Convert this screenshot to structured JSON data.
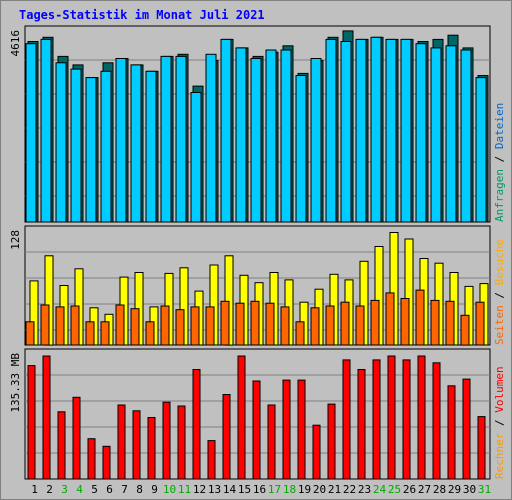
{
  "title": "Tages-Statistik im Monat Juli 2021",
  "colors": {
    "title": "#0000ff",
    "hits": "#006666",
    "files": "#00ccff",
    "pages": "#ff9900",
    "visits": "#ffff00",
    "sites": "#ff6600",
    "volume": "#ff0000",
    "kbin": "#ff9900",
    "kbout": "#ff0000",
    "background": "#c0c0c0",
    "day_normal": "#000000",
    "day_weekend": "#00aa00"
  },
  "legend": {
    "top": [
      {
        "label": "Anfragen",
        "color": "#009966"
      },
      {
        "label": "Dateien",
        "color": "#0066cc"
      }
    ],
    "middle": [
      {
        "label": "Seiten",
        "color": "#ff6600"
      },
      {
        "label": "Besuche",
        "color": "#ffaa00"
      }
    ],
    "bottom": [
      {
        "label": "Rechner",
        "color": "#ff9900"
      },
      {
        "label": "Volumen",
        "color": "#ff0000"
      }
    ],
    "separator": "/"
  },
  "chart_data": [
    {
      "type": "bar",
      "panel": "requests",
      "ymax_label": "4616",
      "ylim": [
        0,
        4616
      ],
      "categories": [
        "1",
        "2",
        "3",
        "4",
        "5",
        "6",
        "7",
        "8",
        "9",
        "10",
        "11",
        "12",
        "13",
        "14",
        "15",
        "16",
        "17",
        "18",
        "19",
        "20",
        "21",
        "22",
        "23",
        "24",
        "25",
        "26",
        "27",
        "28",
        "29",
        "30",
        "31"
      ],
      "weekend_days": [
        "3",
        "4",
        "10",
        "11",
        "17",
        "18",
        "24",
        "25",
        "31"
      ],
      "series": [
        {
          "name": "Anfragen",
          "values": [
            4250,
            4350,
            3900,
            3700,
            3400,
            3750,
            3850,
            3700,
            3550,
            3900,
            3950,
            3200,
            3800,
            4300,
            4100,
            3900,
            4000,
            4150,
            3500,
            3800,
            4350,
            4500,
            4300,
            4350,
            4300,
            4300,
            4250,
            4300,
            4400,
            4100,
            3450
          ]
        },
        {
          "name": "Dateien",
          "values": [
            4200,
            4300,
            3750,
            3600,
            3400,
            3550,
            3850,
            3700,
            3550,
            3900,
            3900,
            3050,
            3950,
            4300,
            4100,
            3850,
            4050,
            4050,
            3450,
            3850,
            4300,
            4250,
            4300,
            4350,
            4300,
            4300,
            4200,
            4100,
            4150,
            4050,
            3400
          ]
        }
      ]
    },
    {
      "type": "bar",
      "panel": "visits",
      "ymax_label": "128",
      "ylim": [
        0,
        128
      ],
      "series": [
        {
          "name": "Besuche",
          "values": [
            69,
            96,
            64,
            82,
            40,
            33,
            73,
            78,
            41,
            77,
            83,
            58,
            86,
            96,
            75,
            67,
            78,
            70,
            46,
            60,
            76,
            70,
            90,
            106,
            121,
            114,
            93,
            88,
            78,
            63,
            66
          ]
        },
        {
          "name": "Seiten",
          "values": [
            25,
            43,
            41,
            42,
            25,
            25,
            43,
            39,
            25,
            42,
            38,
            41,
            41,
            47,
            45,
            47,
            45,
            41,
            25,
            40,
            42,
            46,
            42,
            48,
            56,
            50,
            59,
            48,
            47,
            32,
            46
          ]
        }
      ]
    },
    {
      "type": "bar",
      "panel": "volume",
      "ymax_label": "135.33 MB",
      "ylim": [
        0,
        135.33
      ],
      "series": [
        {
          "name": "Volumen",
          "values": [
            118,
            128,
            70,
            85,
            42,
            34,
            77,
            71,
            64,
            80,
            76,
            114,
            40,
            88,
            128,
            102,
            77,
            103,
            103,
            56,
            78,
            124,
            114,
            124,
            128,
            124,
            128,
            121,
            97,
            104,
            65
          ]
        }
      ]
    }
  ]
}
